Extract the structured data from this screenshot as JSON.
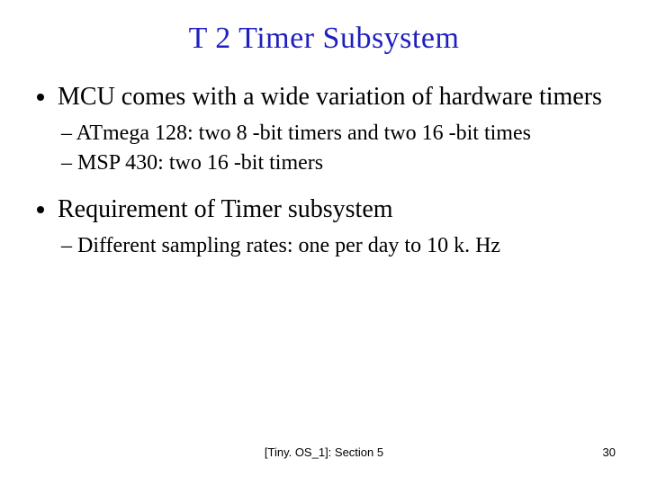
{
  "title": {
    "text": "T 2 Timer Subsystem",
    "color": "#1f1fbf",
    "fontsize": 34
  },
  "bullets": [
    {
      "text": "MCU comes with a wide variation of hardware timers",
      "sub": [
        "– ATmega 128: two 8 -bit timers and two 16 -bit times",
        "– MSP 430: two 16 -bit timers"
      ]
    },
    {
      "text": "Requirement of Timer subsystem",
      "sub": [
        "– Different sampling rates: one per day to 10 k. Hz"
      ]
    }
  ],
  "footer": {
    "reference": "[Tiny. OS_1]: Section 5",
    "page": "30"
  },
  "colors": {
    "background": "#ffffff",
    "text": "#000000"
  }
}
